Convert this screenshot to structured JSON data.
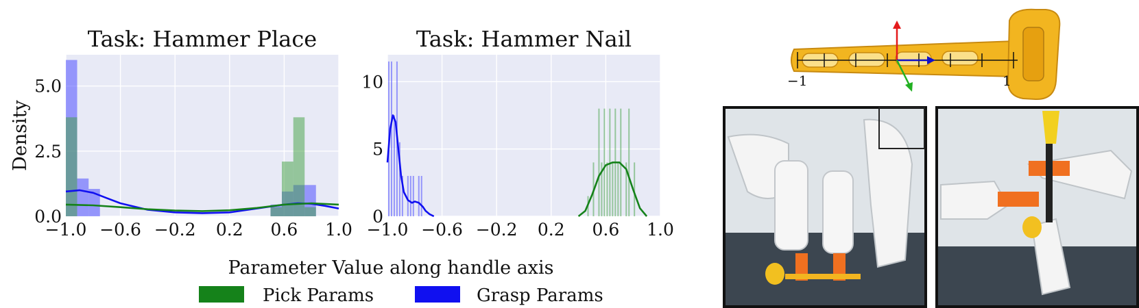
{
  "figure": {
    "xlabel": "Parameter Value along handle axis",
    "legend": {
      "placement": "bottom-center",
      "items": [
        {
          "label": "Pick Params",
          "color": "#15821a"
        },
        {
          "label": "Grasp Params",
          "color": "#1010f0"
        }
      ]
    },
    "hammer_diagram": {
      "axis_labels": [
        "−1",
        "1"
      ],
      "frame_axis_colors": [
        "#e41a1c",
        "#1010c8",
        "#22b022"
      ]
    }
  },
  "chart_data": [
    {
      "type": "histogram",
      "title": "Task: Hammer Place",
      "ylabel": "Density",
      "xlabel": "",
      "xlim": [
        -1.0,
        1.0
      ],
      "ylim": [
        0,
        6.2
      ],
      "xticks": [
        "−1.0",
        "−0.6",
        "−0.2",
        "0.2",
        "0.6",
        "1.0"
      ],
      "xtick_values": [
        -1.0,
        -0.6,
        -0.2,
        0.2,
        0.6,
        1.0
      ],
      "yticks": [
        "0.0",
        "2.5",
        "5.0"
      ],
      "ytick_values": [
        0,
        2.5,
        5.0
      ],
      "grid": true,
      "background": "#e8eaf6",
      "series": [
        {
          "name": "Grasp Params",
          "color": "#4040ff",
          "bins": [
            {
              "x0": -1.0,
              "x1": -0.917,
              "value": 6.0
            },
            {
              "x0": -0.917,
              "x1": -0.833,
              "value": 1.45
            },
            {
              "x0": -0.833,
              "x1": -0.75,
              "value": 1.05
            },
            {
              "x0": 0.5,
              "x1": 0.583,
              "value": 0.45
            },
            {
              "x0": 0.583,
              "x1": 0.667,
              "value": 0.95
            },
            {
              "x0": 0.667,
              "x1": 0.75,
              "value": 1.2
            },
            {
              "x0": 0.75,
              "x1": 0.833,
              "value": 1.2
            }
          ],
          "kde": {
            "x": [
              -1.0,
              -0.9,
              -0.8,
              -0.7,
              -0.6,
              -0.4,
              -0.2,
              0.0,
              0.2,
              0.4,
              0.6,
              0.7,
              0.8,
              0.9,
              1.0
            ],
            "y": [
              0.95,
              1.0,
              0.9,
              0.7,
              0.5,
              0.25,
              0.15,
              0.12,
              0.15,
              0.3,
              0.45,
              0.5,
              0.48,
              0.4,
              0.3
            ]
          }
        },
        {
          "name": "Pick Params",
          "color": "#40a040",
          "bins": [
            {
              "x0": -1.0,
              "x1": -0.917,
              "value": 3.8
            },
            {
              "x0": 0.5,
              "x1": 0.583,
              "value": 0.35
            },
            {
              "x0": 0.583,
              "x1": 0.667,
              "value": 2.1
            },
            {
              "x0": 0.667,
              "x1": 0.75,
              "value": 3.8
            },
            {
              "x0": 0.75,
              "x1": 0.833,
              "value": 0.35
            }
          ],
          "kde": {
            "x": [
              -1.0,
              -0.8,
              -0.6,
              -0.4,
              -0.2,
              0.0,
              0.2,
              0.4,
              0.6,
              0.8,
              1.0
            ],
            "y": [
              0.45,
              0.42,
              0.35,
              0.27,
              0.22,
              0.2,
              0.23,
              0.32,
              0.45,
              0.5,
              0.45
            ]
          }
        }
      ]
    },
    {
      "type": "histogram",
      "title": "Task: Hammer Nail",
      "ylabel": "",
      "xlabel": "",
      "xlim": [
        -1.0,
        1.0
      ],
      "ylim": [
        0,
        12
      ],
      "xticks": [
        "−1.0",
        "−0.6",
        "−0.2",
        "0.2",
        "0.6",
        "1.0"
      ],
      "xtick_values": [
        -1.0,
        -0.6,
        -0.2,
        0.2,
        0.6,
        1.0
      ],
      "yticks": [
        "0",
        "5",
        "10"
      ],
      "ytick_values": [
        0,
        5,
        10
      ],
      "grid": true,
      "background": "#e8eaf6",
      "series": [
        {
          "name": "Grasp Params",
          "color": "#4040ff",
          "bins": [
            {
              "x0": -0.995,
              "x1": -0.985,
              "value": 11.5
            },
            {
              "x0": -0.975,
              "x1": -0.965,
              "value": 11.5
            },
            {
              "x0": -0.955,
              "x1": -0.945,
              "value": 7.5
            },
            {
              "x0": -0.935,
              "x1": -0.925,
              "value": 11.5
            },
            {
              "x0": -0.915,
              "x1": -0.905,
              "value": 5.5
            },
            {
              "x0": -0.895,
              "x1": -0.885,
              "value": 3.0
            },
            {
              "x0": -0.855,
              "x1": -0.845,
              "value": 3.0
            },
            {
              "x0": -0.835,
              "x1": -0.825,
              "value": 3.0
            },
            {
              "x0": -0.815,
              "x1": -0.805,
              "value": 3.0
            },
            {
              "x0": -0.775,
              "x1": -0.765,
              "value": 3.0
            },
            {
              "x0": -0.755,
              "x1": -0.745,
              "value": 3.0
            }
          ],
          "kde": {
            "x": [
              -1.0,
              -0.98,
              -0.96,
              -0.94,
              -0.92,
              -0.9,
              -0.88,
              -0.85,
              -0.82,
              -0.8,
              -0.77,
              -0.74,
              -0.72,
              -0.69,
              -0.66
            ],
            "y": [
              4.0,
              6.5,
              7.5,
              7.0,
              5.0,
              3.0,
              1.8,
              1.2,
              1.0,
              1.1,
              1.0,
              0.7,
              0.4,
              0.15,
              0.0
            ]
          }
        },
        {
          "name": "Pick Params",
          "color": "#40a040",
          "bins": [
            {
              "x0": 0.465,
              "x1": 0.475,
              "value": 1.5
            },
            {
              "x0": 0.505,
              "x1": 0.515,
              "value": 4.0
            },
            {
              "x0": 0.545,
              "x1": 0.555,
              "value": 8.0
            },
            {
              "x0": 0.565,
              "x1": 0.575,
              "value": 4.0
            },
            {
              "x0": 0.585,
              "x1": 0.595,
              "value": 8.0
            },
            {
              "x0": 0.605,
              "x1": 0.615,
              "value": 4.0
            },
            {
              "x0": 0.625,
              "x1": 0.635,
              "value": 8.0
            },
            {
              "x0": 0.645,
              "x1": 0.655,
              "value": 4.0
            },
            {
              "x0": 0.665,
              "x1": 0.675,
              "value": 8.0
            },
            {
              "x0": 0.685,
              "x1": 0.695,
              "value": 4.0
            },
            {
              "x0": 0.705,
              "x1": 0.715,
              "value": 8.0
            },
            {
              "x0": 0.745,
              "x1": 0.755,
              "value": 4.0
            },
            {
              "x0": 0.765,
              "x1": 0.775,
              "value": 8.0
            },
            {
              "x0": 0.805,
              "x1": 0.815,
              "value": 4.0
            }
          ],
          "kde": {
            "x": [
              0.4,
              0.45,
              0.5,
              0.55,
              0.6,
              0.65,
              0.7,
              0.75,
              0.8,
              0.85,
              0.9
            ],
            "y": [
              0.0,
              0.4,
              1.6,
              3.0,
              3.8,
              4.0,
              4.0,
              3.5,
              2.0,
              0.6,
              0.0
            ]
          }
        }
      ]
    }
  ]
}
